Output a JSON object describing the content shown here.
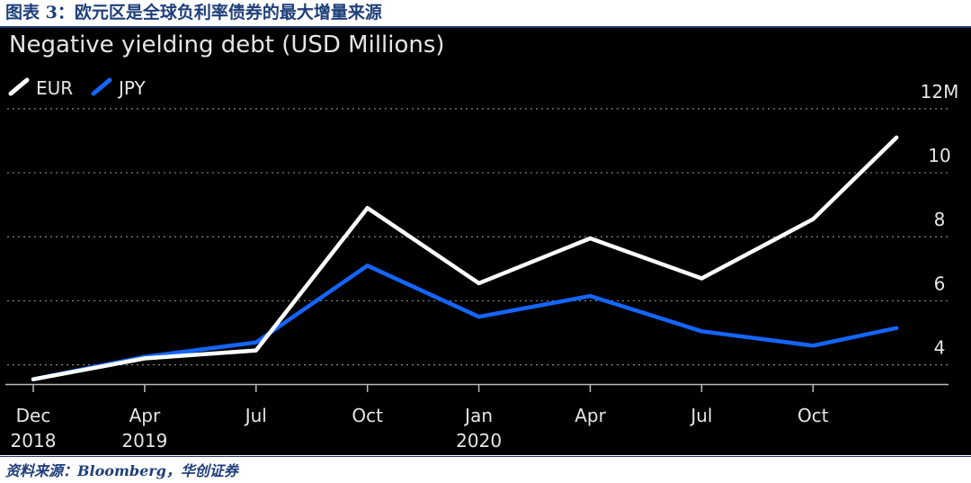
{
  "figure": {
    "caption": "图表 3：欧元区是全球负利率债券的最大增量来源",
    "source": "资料来源：Bloomberg，华创证券"
  },
  "colors": {
    "background": "#000000",
    "eur": "#ffffff",
    "jpy": "#1565ff",
    "grid": "#888888",
    "text": "#e6e6e6",
    "caption": "#1f3f7a"
  },
  "chart_data": {
    "type": "line",
    "title": "Negative yielding debt (USD Millions)",
    "legend_position": "top-left",
    "grid": true,
    "x_ticks": [
      {
        "top": "Dec",
        "bottom": "2018"
      },
      {
        "top": "Apr",
        "bottom": "2019"
      },
      {
        "top": "Jul",
        "bottom": ""
      },
      {
        "top": "Oct",
        "bottom": ""
      },
      {
        "top": "Jan",
        "bottom": "2020"
      },
      {
        "top": "Apr",
        "bottom": ""
      },
      {
        "top": "Jul",
        "bottom": ""
      },
      {
        "top": "Oct",
        "bottom": ""
      }
    ],
    "y_ticks": [
      "4",
      "6",
      "8",
      "10",
      "12M"
    ],
    "y_values": [
      4,
      6,
      8,
      10,
      12
    ],
    "ylim": [
      3.4,
      12
    ],
    "series": [
      {
        "name": "EUR",
        "color": "#ffffff",
        "x": [
          0,
          1,
          2,
          3,
          4,
          5,
          6,
          7,
          7.75
        ],
        "y": [
          3.55,
          4.2,
          4.45,
          8.9,
          6.55,
          7.95,
          6.7,
          8.55,
          11.1
        ]
      },
      {
        "name": "JPY",
        "color": "#1565ff",
        "x": [
          0,
          1,
          2,
          3,
          4,
          5,
          6,
          7,
          7.75
        ],
        "y": [
          3.55,
          4.25,
          4.7,
          7.1,
          5.5,
          6.15,
          5.05,
          4.6,
          5.15
        ]
      }
    ]
  }
}
